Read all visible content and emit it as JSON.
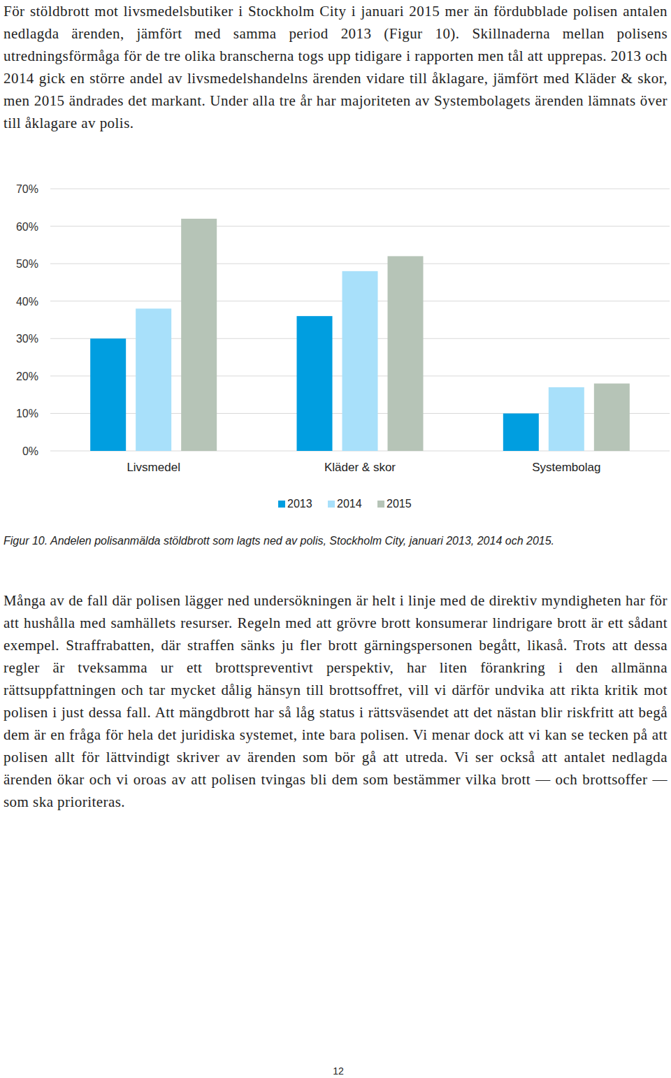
{
  "paragraphs": [
    "För stöldbrott mot livsmedelsbutiker i Stockholm City i januari 2015 mer än fördubblade polisen antalen nedlagda ärenden, jämfört med samma period 2013 (Figur 10). Skillnaderna mellan polisens utredningsförmåga för de tre olika branscherna togs upp tidigare i rapporten men tål att upprepas. 2013 och 2014 gick en större andel av livsmedelshandelns ärenden vidare till åklagare, jämfört med Kläder & skor, men 2015 ändrades det markant. Under alla tre år har majoriteten av Systembolagets ärenden lämnats över till åklagare av polis.",
    "Många av de fall där polisen lägger ned undersökningen är helt i linje med de direktiv myndigheten har för att hushålla med samhällets resurser. Regeln med att grövre brott konsumerar lindrigare brott är ett sådant exempel. Straffrabatten, där straffen sänks ju fler brott gärningspersonen begått, likaså. Trots att dessa regler är tveksamma ur ett brottspreventivt perspektiv, har liten förankring i den allmänna rättsuppfattningen och tar mycket dålig hänsyn till brottsoffret, vill vi därför undvika att rikta kritik mot polisen i just dessa fall. Att mängdbrott har så låg status i rättsväsendet att det nästan blir riskfritt att begå dem är en fråga för hela det juridiska systemet, inte bara polisen. Vi menar dock att vi kan se tecken på att polisen allt för lättvindigt skriver av ärenden som bör gå att utreda. Vi ser också att antalet nedlagda ärenden ökar och vi oroas av att polisen tvingas bli dem som bestämmer vilka brott — och brottsoffer — som ska prioriteras."
  ],
  "chart_data": {
    "type": "bar",
    "categories": [
      "Livsmedel",
      "Kläder & skor",
      "Systembolag"
    ],
    "series": [
      {
        "name": "2013",
        "color": "#009ee0",
        "values": [
          30,
          36,
          10
        ]
      },
      {
        "name": "2014",
        "color": "#a8e0fa",
        "values": [
          38,
          48,
          17
        ]
      },
      {
        "name": "2015",
        "color": "#b6c4b7",
        "values": [
          62,
          52,
          18
        ]
      }
    ],
    "ylim": [
      0,
      70
    ],
    "yticks": [
      {
        "value": 0,
        "label": "0%"
      },
      {
        "value": 10,
        "label": "10%"
      },
      {
        "value": 20,
        "label": "20%"
      },
      {
        "value": 30,
        "label": "30%"
      },
      {
        "value": 40,
        "label": "40%"
      },
      {
        "value": 50,
        "label": "50%"
      },
      {
        "value": 60,
        "label": "60%"
      },
      {
        "value": 70,
        "label": "70%"
      }
    ],
    "grid": true,
    "legend": "bottom"
  },
  "caption": "Figur 10. Andelen polisanmälda stöldbrott som lagts ned av polis, Stockholm City, januari 2013, 2014 och 2015.",
  "page_number": "12"
}
